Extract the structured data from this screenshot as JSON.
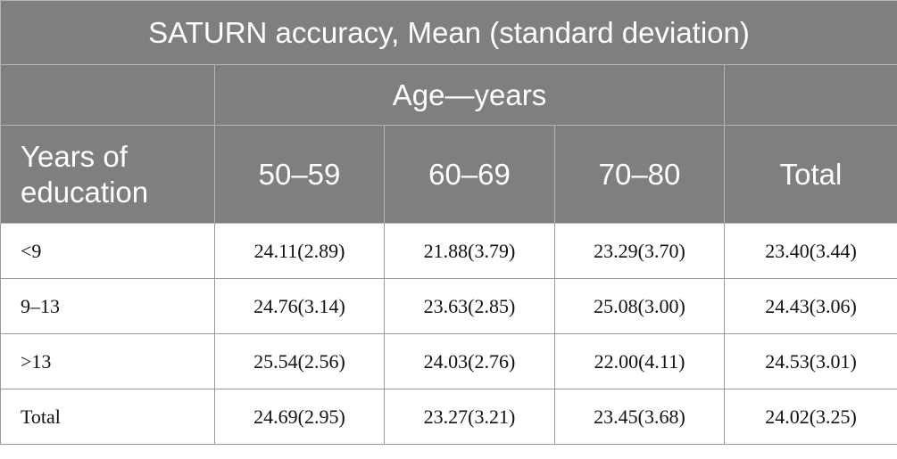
{
  "title": "SATURN accuracy, Mean (standard deviation)",
  "column_group": "Age—years",
  "columns": [
    "Years of education",
    "50–59",
    "60–69",
    "70–80",
    "Total"
  ],
  "rows": [
    [
      "<9",
      "24.11(2.89)",
      "21.88(3.79)",
      "23.29(3.70)",
      "23.40(3.44)"
    ],
    [
      "9–13",
      "24.76(3.14)",
      "23.63(2.85)",
      "25.08(3.00)",
      "24.43(3.06)"
    ],
    [
      ">13",
      "25.54(2.56)",
      "24.03(2.76)",
      "22.00(4.11)",
      "24.53(3.01)"
    ],
    [
      "Total",
      "24.69(2.95)",
      "23.27(3.21)",
      "23.45(3.68)",
      "24.02(3.25)"
    ]
  ]
}
